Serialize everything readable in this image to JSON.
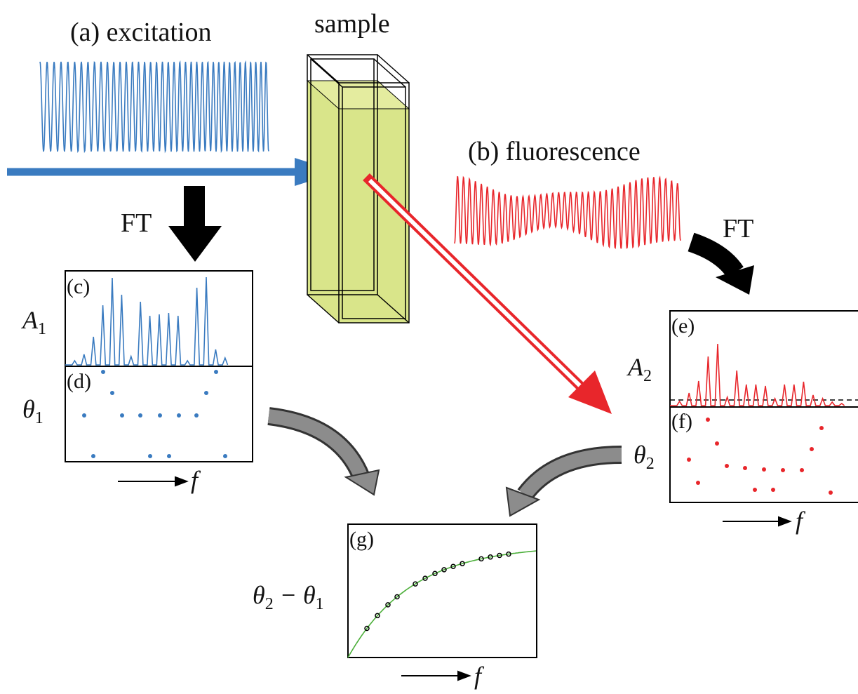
{
  "labels": {
    "excitation": "(a) excitation",
    "sample": "sample",
    "fluorescence": "(b) fluorescence",
    "ft_left": "FT",
    "ft_right": "FT"
  },
  "panels": {
    "c": {
      "tag": "(c)",
      "axis_label": {
        "symbol": "A",
        "sub": "1"
      }
    },
    "d": {
      "tag": "(d)",
      "axis_label": {
        "symbol": "θ",
        "sub": "1"
      }
    },
    "e": {
      "tag": "(e)",
      "axis_label": {
        "symbol": "A",
        "sub": "2"
      }
    },
    "f": {
      "tag": "(f)",
      "axis_label": {
        "symbol": "θ",
        "sub": "2"
      }
    },
    "g": {
      "tag": "(g)",
      "axis_label": [
        {
          "symbol": "θ",
          "sub": "2"
        },
        {
          "symbol": " − θ",
          "sub": "1"
        }
      ]
    }
  },
  "freq_labels": [
    "f",
    "f",
    "f"
  ]
}
